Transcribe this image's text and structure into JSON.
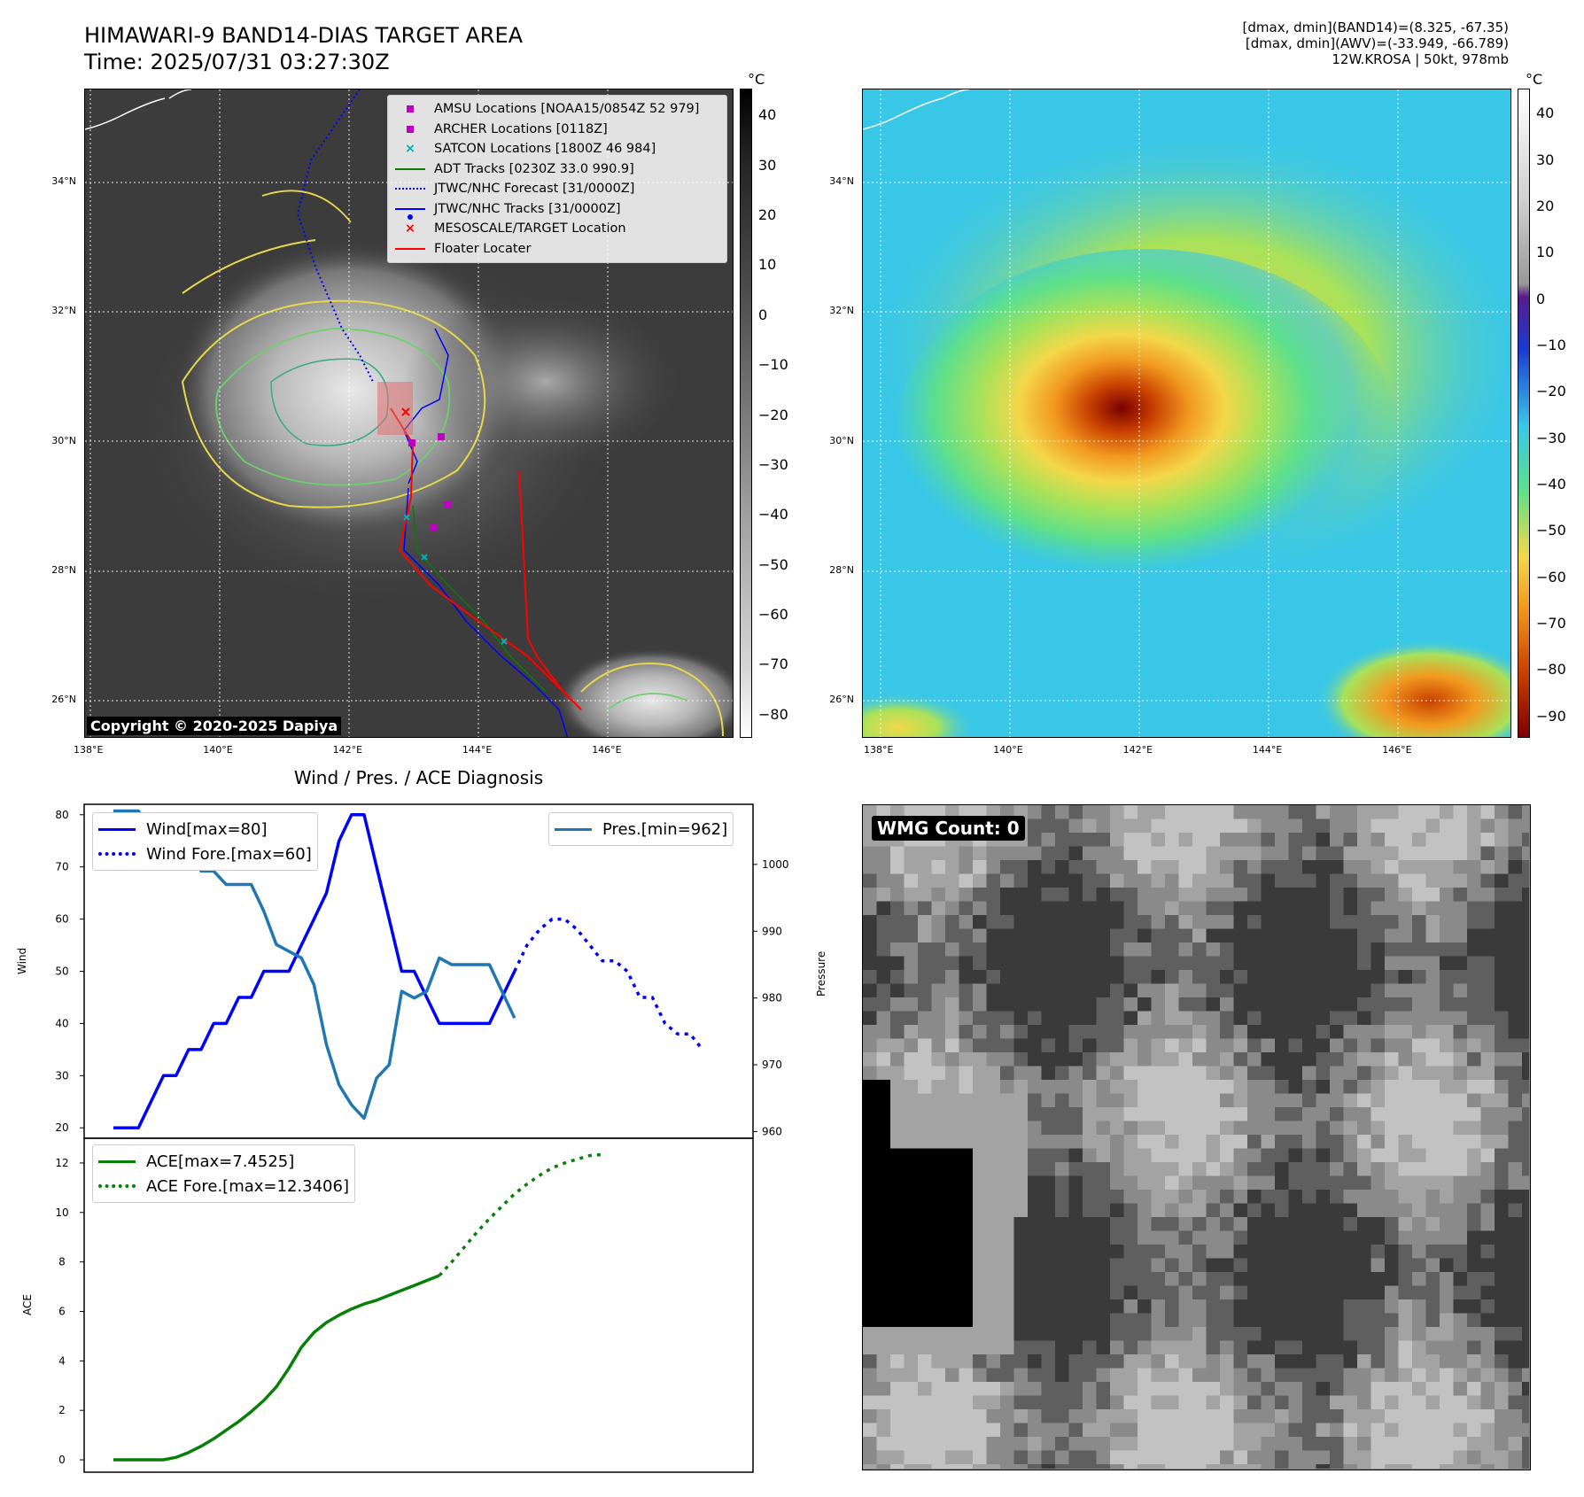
{
  "header": {
    "title_line1": "HIMAWARI-9 BAND14-DIAS TARGET AREA",
    "title_line2": "Time: 2025/07/31 03:27:30Z",
    "info_line1": "[dmax, dmin](BAND14)=(8.325, -67.35)",
    "info_line2": "[dmax, dmin](AWV)=(-33.949, -66.789)",
    "info_line3": "12W.KROSA | 50kt, 978mb"
  },
  "map_axes": {
    "lat_labels": [
      "34°N",
      "32°N",
      "30°N",
      "28°N",
      "26°N"
    ],
    "lon_labels": [
      "138°E",
      "140°E",
      "142°E",
      "144°E",
      "146°E"
    ]
  },
  "colorbar1": {
    "unit": "°C",
    "ticks": [
      "40",
      "30",
      "20",
      "10",
      "0",
      "−10",
      "−20",
      "−30",
      "−40",
      "−50",
      "−60",
      "−70",
      "−80"
    ]
  },
  "colorbar2": {
    "unit": "°C",
    "ticks": [
      "40",
      "30",
      "20",
      "10",
      "0",
      "−10",
      "−20",
      "−30",
      "−40",
      "−50",
      "−60",
      "−70",
      "−80",
      "−90"
    ]
  },
  "map_legend": [
    {
      "label": "AMSU Locations [NOAA15/0854Z 52 979]",
      "symbol": "square",
      "color": "#c000c0"
    },
    {
      "label": "ARCHER Locations [0118Z]",
      "symbol": "square",
      "color": "#c000c0"
    },
    {
      "label": "SATCON Locations [1800Z 46 984]",
      "symbol": "x",
      "color": "#00b0b0"
    },
    {
      "label": "ADT Tracks [0230Z 33.0 990.9]",
      "symbol": "line",
      "color": "#0a7a0a"
    },
    {
      "label": "JTWC/NHC Forecast [31/0000Z]",
      "symbol": "dotted",
      "color": "#0000ff"
    },
    {
      "label": "JTWC/NHC Tracks [31/0000Z]",
      "symbol": "line-dot",
      "color": "#0000ff"
    },
    {
      "label": "MESOSCALE/TARGET Location",
      "symbol": "x",
      "color": "#ff0000"
    },
    {
      "label": "Floater Locater",
      "symbol": "line",
      "color": "#ff0000"
    }
  ],
  "copyright": "Copyright © 2020-2025 Dapiya",
  "wmg_label": "WMG Count: 0",
  "diag_title": "Wind / Pres. / ACE Diagnosis",
  "chart_data": [
    {
      "type": "line",
      "title": "Wind / Pres. / ACE Diagnosis",
      "ylabel": "Wind",
      "y2label": "Pressure",
      "ylim": [
        18,
        82
      ],
      "y2lim": [
        959,
        1009
      ],
      "yticks": [
        "80",
        "70",
        "60",
        "50",
        "40",
        "30",
        "20"
      ],
      "y2ticks": [
        "1000",
        "990",
        "980",
        "970",
        "960"
      ],
      "series": [
        {
          "name": "Wind[max=80]",
          "style": "solid",
          "color": "#0000ff",
          "axis": "left",
          "points": [
            [
              0,
              20
            ],
            [
              1,
              20
            ],
            [
              2,
              20
            ],
            [
              3,
              25
            ],
            [
              4,
              30
            ],
            [
              5,
              30
            ],
            [
              6,
              35
            ],
            [
              7,
              35
            ],
            [
              8,
              40
            ],
            [
              9,
              40
            ],
            [
              10,
              45
            ],
            [
              11,
              45
            ],
            [
              12,
              50
            ],
            [
              13,
              50
            ],
            [
              14,
              50
            ],
            [
              15,
              55
            ],
            [
              16,
              60
            ],
            [
              17,
              65
            ],
            [
              18,
              75
            ],
            [
              19,
              80
            ],
            [
              20,
              80
            ],
            [
              21,
              70
            ],
            [
              22,
              60
            ],
            [
              23,
              50
            ],
            [
              24,
              50
            ],
            [
              25,
              45
            ],
            [
              26,
              40
            ],
            [
              27,
              40
            ],
            [
              28,
              40
            ],
            [
              29,
              40
            ],
            [
              30,
              40
            ],
            [
              31,
              45
            ],
            [
              32,
              50
            ]
          ]
        },
        {
          "name": "Wind Fore.[max=60]",
          "style": "dotted",
          "color": "#0000ff",
          "axis": "left",
          "points": [
            [
              32,
              50
            ],
            [
              33,
              55
            ],
            [
              34,
              58
            ],
            [
              35,
              60
            ],
            [
              36,
              60
            ],
            [
              37,
              58
            ],
            [
              38,
              55
            ],
            [
              39,
              52
            ],
            [
              40,
              52
            ],
            [
              41,
              50
            ],
            [
              42,
              45
            ],
            [
              43,
              45
            ],
            [
              44,
              40
            ],
            [
              45,
              38
            ],
            [
              46,
              38
            ],
            [
              47,
              35
            ]
          ]
        },
        {
          "name": "Pres.[min=962]",
          "style": "solid",
          "color": "#1f77b4",
          "axis": "right",
          "points": [
            [
              0,
              1008
            ],
            [
              1,
              1008
            ],
            [
              2,
              1008
            ],
            [
              3,
              1005
            ],
            [
              4,
              1005
            ],
            [
              5,
              1003
            ],
            [
              6,
              1003
            ],
            [
              7,
              999
            ],
            [
              8,
              999
            ],
            [
              9,
              997
            ],
            [
              10,
              997
            ],
            [
              11,
              997
            ],
            [
              12,
              993
            ],
            [
              13,
              988
            ],
            [
              14,
              987
            ],
            [
              15,
              986
            ],
            [
              16,
              982
            ],
            [
              17,
              973
            ],
            [
              18,
              967
            ],
            [
              19,
              964
            ],
            [
              20,
              962
            ],
            [
              21,
              968
            ],
            [
              22,
              970
            ],
            [
              23,
              981
            ],
            [
              24,
              980
            ],
            [
              25,
              981
            ],
            [
              26,
              986
            ],
            [
              27,
              985
            ],
            [
              28,
              985
            ],
            [
              29,
              985
            ],
            [
              30,
              985
            ],
            [
              31,
              981
            ],
            [
              32,
              977
            ]
          ]
        },
        {
          "name": "ACE[max=7.4525]",
          "style": "solid",
          "color": "#087f08",
          "axis": "ace",
          "points": [
            [
              0,
              0
            ],
            [
              1,
              0
            ],
            [
              2,
              0
            ],
            [
              3,
              0
            ],
            [
              4,
              0
            ],
            [
              5,
              0.1
            ],
            [
              6,
              0.3
            ],
            [
              7,
              0.55
            ],
            [
              8,
              0.85
            ],
            [
              9,
              1.2
            ],
            [
              10,
              1.55
            ],
            [
              11,
              1.95
            ],
            [
              12,
              2.4
            ],
            [
              13,
              2.95
            ],
            [
              14,
              3.7
            ],
            [
              15,
              4.55
            ],
            [
              16,
              5.15
            ],
            [
              17,
              5.55
            ],
            [
              18,
              5.85
            ],
            [
              19,
              6.1
            ],
            [
              20,
              6.3
            ],
            [
              21,
              6.45
            ],
            [
              22,
              6.65
            ],
            [
              23,
              6.85
            ],
            [
              24,
              7.05
            ],
            [
              25,
              7.25
            ],
            [
              26,
              7.45
            ]
          ]
        },
        {
          "name": "ACE Fore.[max=12.3406]",
          "style": "dotted",
          "color": "#087f08",
          "axis": "ace",
          "points": [
            [
              26,
              7.45
            ],
            [
              27,
              8.0
            ],
            [
              28,
              8.6
            ],
            [
              29,
              9.2
            ],
            [
              30,
              9.75
            ],
            [
              31,
              10.25
            ],
            [
              32,
              10.75
            ],
            [
              33,
              11.15
            ],
            [
              34,
              11.5
            ],
            [
              35,
              11.8
            ],
            [
              36,
              12.0
            ],
            [
              37,
              12.15
            ],
            [
              38,
              12.3
            ],
            [
              39,
              12.34
            ]
          ]
        }
      ]
    },
    {
      "type": "line",
      "ylabel": "ACE",
      "ylim": [
        -0.5,
        13
      ],
      "yticks": [
        "12",
        "10",
        "8",
        "6",
        "4",
        "2",
        "0"
      ]
    }
  ],
  "colors": {
    "accent_red": "#ff0000",
    "forecast_blue": "#0000ff",
    "pressure_blue": "#1f77b4",
    "ace_green": "#087f08"
  }
}
